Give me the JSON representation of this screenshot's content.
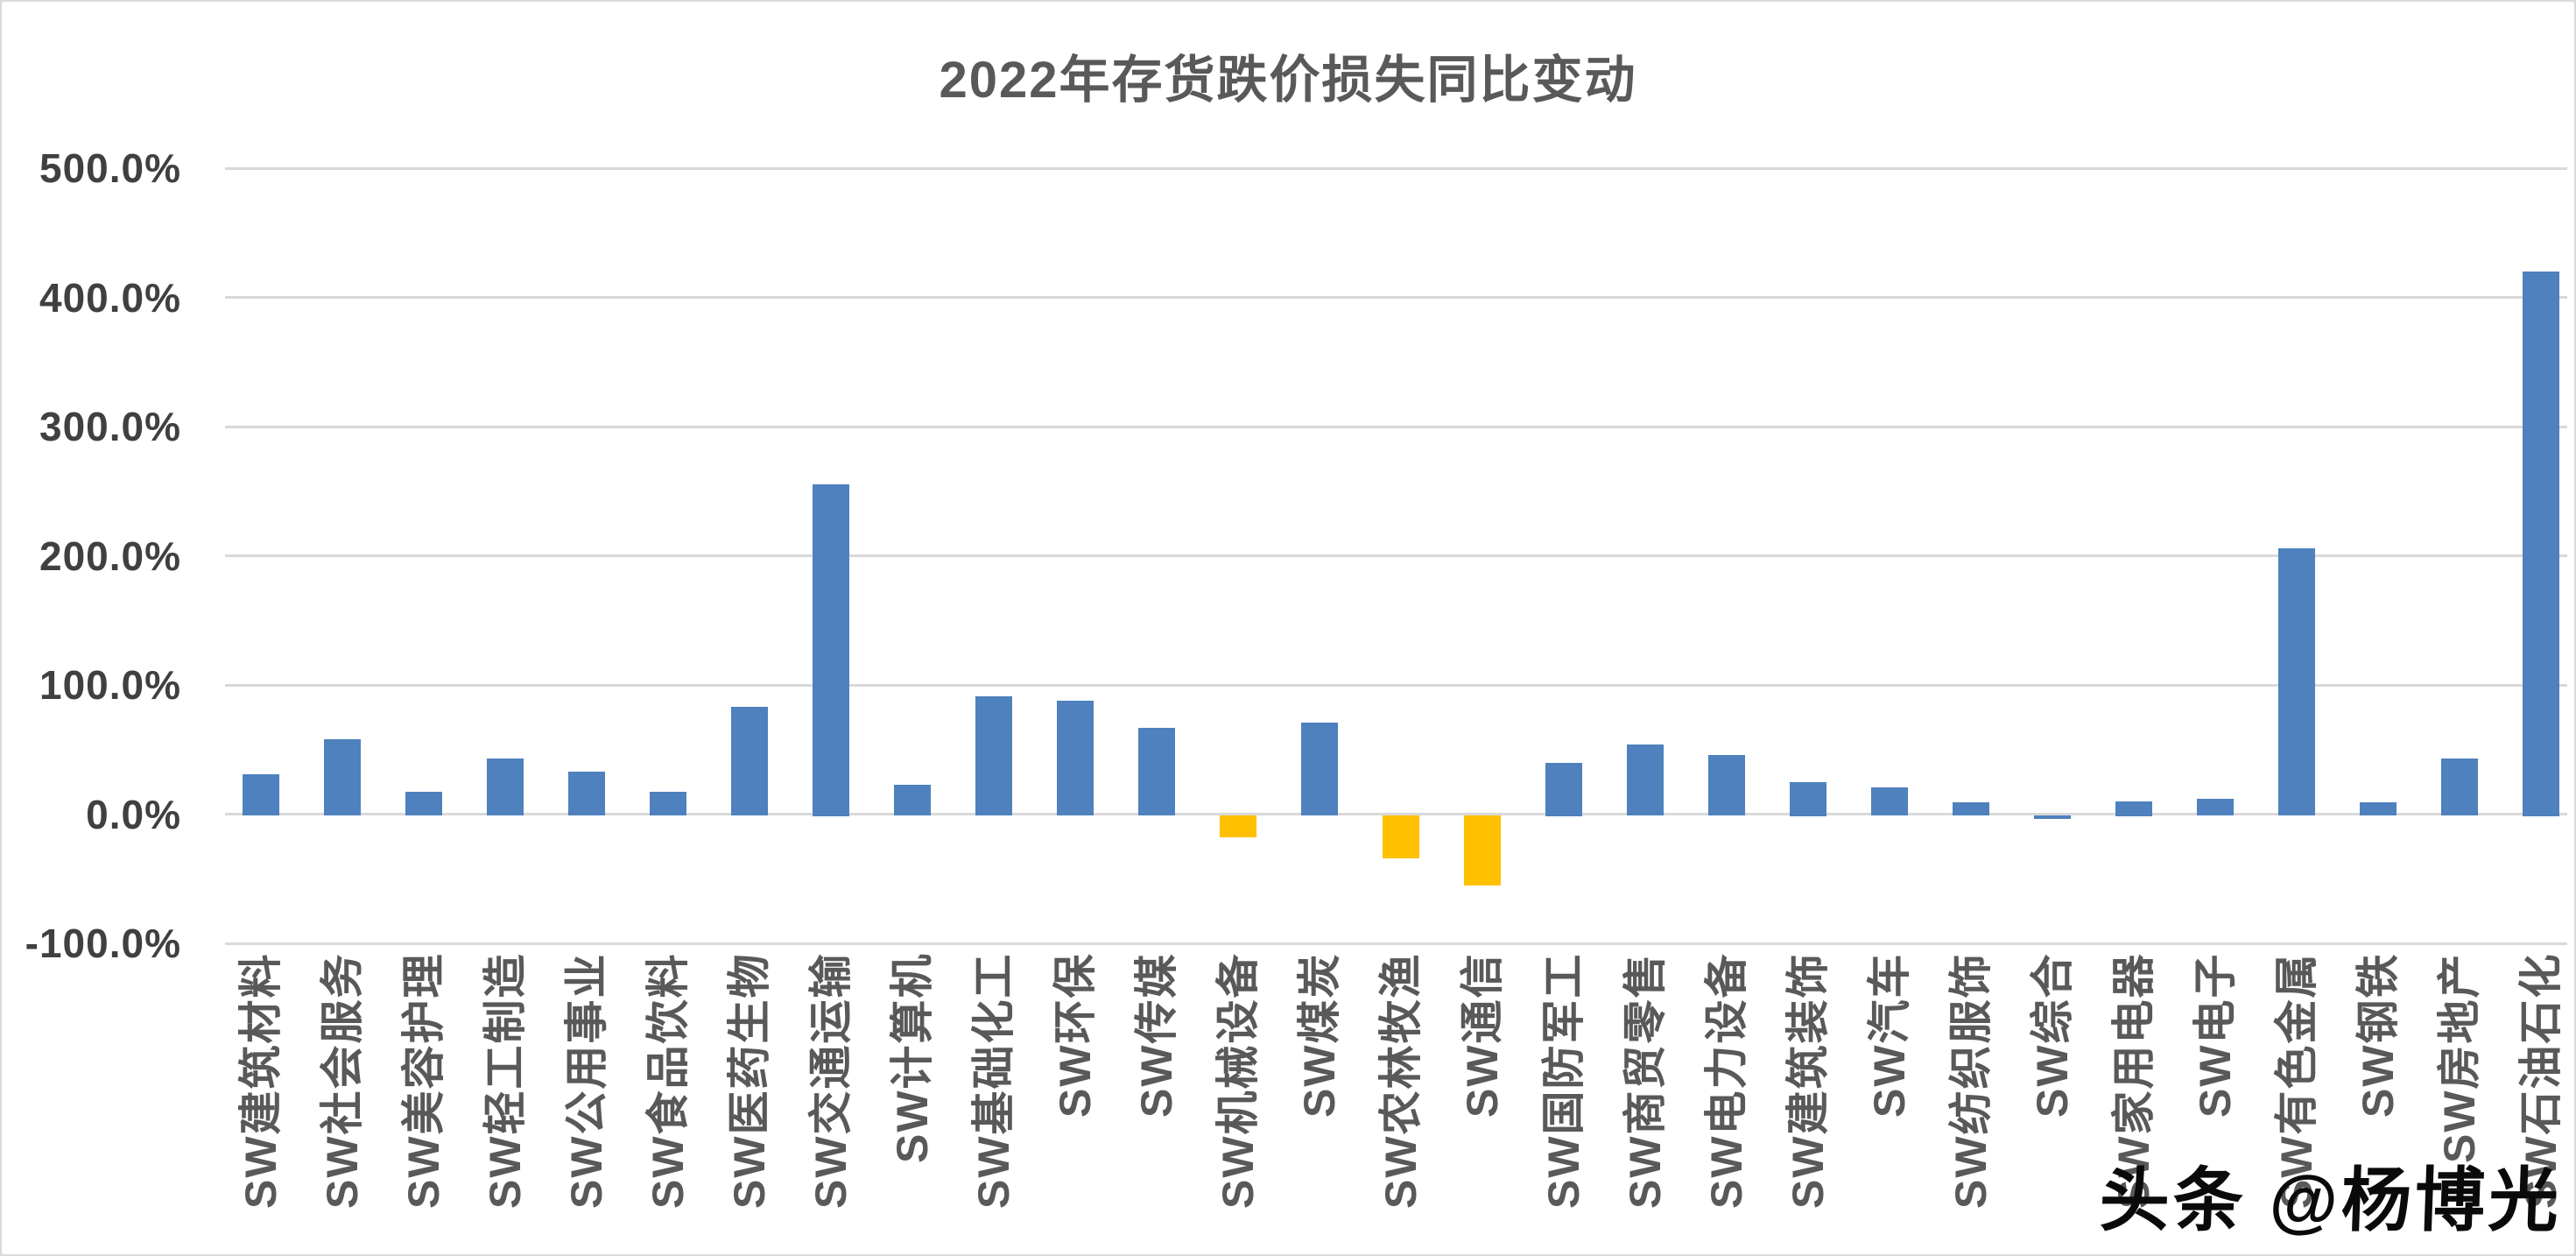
{
  "page": {
    "watermark": "头条 @杨博光"
  },
  "colors": {
    "bar_positive": "#4E81BD",
    "bar_negative_highlight": "#FFC000",
    "gridline": "#D9D9D9",
    "title_text": "#595959",
    "ytick_text": "#404040",
    "xtick_text": "#595959",
    "watermark_text": "#0A0A0A"
  },
  "chart_data": {
    "type": "bar",
    "title": "2022年存货跌价损失同比变动",
    "xlabel": "",
    "ylabel": "",
    "value_unit": "percent",
    "ylim": [
      -100,
      500
    ],
    "grid": true,
    "legend": "none",
    "ytick_values": [
      500,
      400,
      300,
      200,
      100,
      0,
      -100
    ],
    "ytick_labels": [
      "500.0%",
      "400.0%",
      "300.0%",
      "200.0%",
      "100.0%",
      "0.0%",
      "-100.0%"
    ],
    "categories": [
      "SW建筑材料",
      "SW社会服务",
      "SW美容护理",
      "SW轻工制造",
      "SW公用事业",
      "SW食品饮料",
      "SW医药生物",
      "SW交通运输",
      "SW计算机",
      "SW基础化工",
      "SW环保",
      "SW传媒",
      "SW机械设备",
      "SW煤炭",
      "SW农林牧渔",
      "SW通信",
      "SW国防军工",
      "SW商贸零售",
      "SW电力设备",
      "SW建筑装饰",
      "SW汽车",
      "SW纺织服饰",
      "SW综合",
      "SW家用电器",
      "SW电子",
      "SW有色金属",
      "SW钢铁",
      "SW房地产",
      "SW石油石化"
    ],
    "values": [
      31,
      58,
      17,
      43,
      33,
      17,
      83,
      255,
      23,
      91,
      88,
      67,
      -17,
      71,
      -33,
      -54,
      40,
      54,
      46,
      25,
      21,
      9,
      -3,
      10,
      12,
      206,
      9,
      43,
      420
    ],
    "yellow_bars": [
      "SW机械设备",
      "SW农林牧渔",
      "SW通信"
    ]
  }
}
